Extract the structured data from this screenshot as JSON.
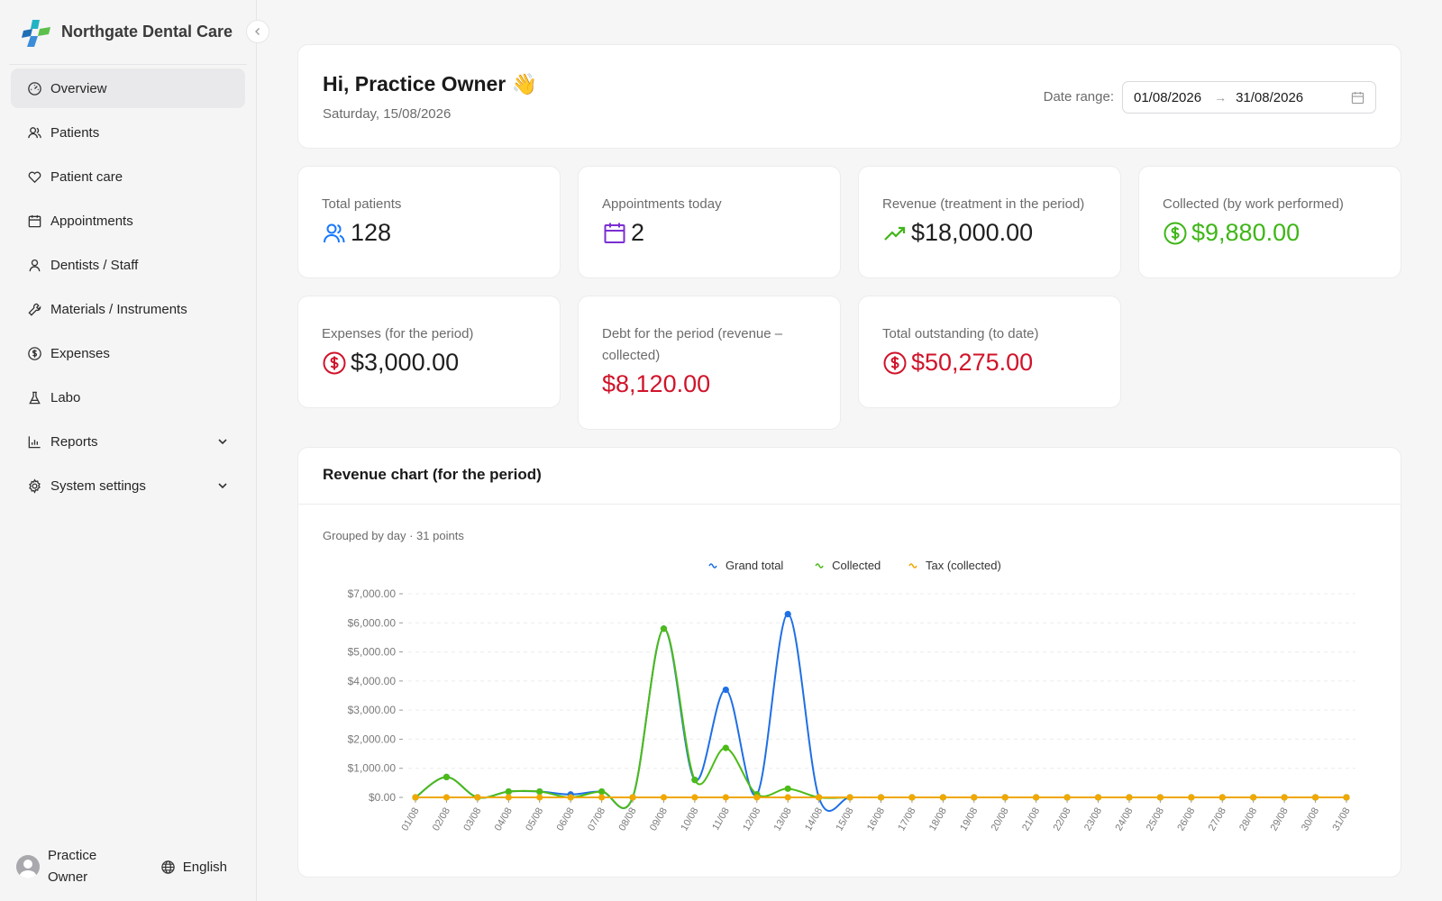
{
  "brand": {
    "name": "Northgate Dental Care"
  },
  "sidebar": {
    "items": [
      {
        "label": "Overview",
        "icon": "dashboard-icon",
        "active": true
      },
      {
        "label": "Patients",
        "icon": "users-icon"
      },
      {
        "label": "Patient care",
        "icon": "heart-icon"
      },
      {
        "label": "Appointments",
        "icon": "calendar-icon"
      },
      {
        "label": "Dentists / Staff",
        "icon": "user-icon"
      },
      {
        "label": "Materials / Instruments",
        "icon": "tool-icon"
      },
      {
        "label": "Expenses",
        "icon": "dollar-circle-icon"
      },
      {
        "label": "Labo",
        "icon": "flask-icon"
      },
      {
        "label": "Reports",
        "icon": "bar-chart-icon",
        "expandable": true
      },
      {
        "label": "System settings",
        "icon": "gear-icon",
        "expandable": true
      }
    ],
    "user": {
      "name": "Practice Owner"
    },
    "language": "English"
  },
  "header": {
    "greeting": "Hi, Practice Owner 👋",
    "date": "Saturday, 15/08/2026",
    "date_range_label": "Date range:",
    "date_from": "01/08/2026",
    "date_to": "31/08/2026"
  },
  "stats": [
    {
      "label": "Total patients",
      "value": "128",
      "icon": "users-icon",
      "color": "#1f1f1f"
    },
    {
      "label": "Appointments today",
      "value": "2",
      "icon": "calendar-icon",
      "color": "#1f1f1f"
    },
    {
      "label": "Revenue (treatment in the period)",
      "value": "$18,000.00",
      "icon": "trend-up-icon",
      "color": "#1f1f1f"
    },
    {
      "label": "Collected (by work performed)",
      "value": "$9,880.00",
      "icon": "dollar-circle-icon",
      "color": "#3fb618"
    },
    {
      "label": "Expenses (for the period)",
      "value": "$3,000.00",
      "icon": "dollar-circle-icon",
      "color": "#1f1f1f"
    },
    {
      "label": "Debt for the period (revenue – collected)",
      "value": "$8,120.00",
      "icon": "",
      "color": "#d0142a"
    },
    {
      "label": "Total outstanding (to date)",
      "value": "$50,275.00",
      "icon": "dollar-circle-icon",
      "color": "#d0142a"
    }
  ],
  "chart_card": {
    "title": "Revenue chart (for the period)",
    "subtitle": "Grouped by day · 31 points"
  },
  "chart_data": {
    "type": "line",
    "x": [
      "01/08",
      "02/08",
      "03/08",
      "04/08",
      "05/08",
      "06/08",
      "07/08",
      "08/08",
      "09/08",
      "10/08",
      "11/08",
      "12/08",
      "13/08",
      "14/08",
      "15/08",
      "16/08",
      "17/08",
      "18/08",
      "19/08",
      "20/08",
      "21/08",
      "22/08",
      "23/08",
      "24/08",
      "25/08",
      "26/08",
      "27/08",
      "28/08",
      "29/08",
      "30/08",
      "31/08"
    ],
    "series": [
      {
        "name": "Grand total",
        "color": "#1f6fe5",
        "values": [
          0,
          700,
          0,
          200,
          200,
          100,
          200,
          0,
          5800,
          600,
          3700,
          100,
          6300,
          0,
          0,
          0,
          0,
          0,
          0,
          0,
          0,
          0,
          0,
          0,
          0,
          0,
          0,
          0,
          0,
          0,
          0
        ]
      },
      {
        "name": "Collected",
        "color": "#4cbb17",
        "values": [
          0,
          700,
          0,
          200,
          200,
          0,
          200,
          0,
          5800,
          600,
          1700,
          100,
          300,
          0,
          0,
          0,
          0,
          0,
          0,
          0,
          0,
          0,
          0,
          0,
          0,
          0,
          0,
          0,
          0,
          0,
          0
        ]
      },
      {
        "name": "Tax (collected)",
        "color": "#f0a800",
        "values": [
          0,
          0,
          0,
          0,
          0,
          0,
          0,
          0,
          0,
          0,
          0,
          0,
          0,
          0,
          0,
          0,
          0,
          0,
          0,
          0,
          0,
          0,
          0,
          0,
          0,
          0,
          0,
          0,
          0,
          0,
          0
        ]
      }
    ],
    "y_ticks": [
      "$0.00",
      "$1,000.00",
      "$2,000.00",
      "$3,000.00",
      "$4,000.00",
      "$5,000.00",
      "$6,000.00",
      "$7,000.00"
    ],
    "ylim": [
      0,
      7000
    ],
    "legend": "top-center",
    "grid": true
  }
}
